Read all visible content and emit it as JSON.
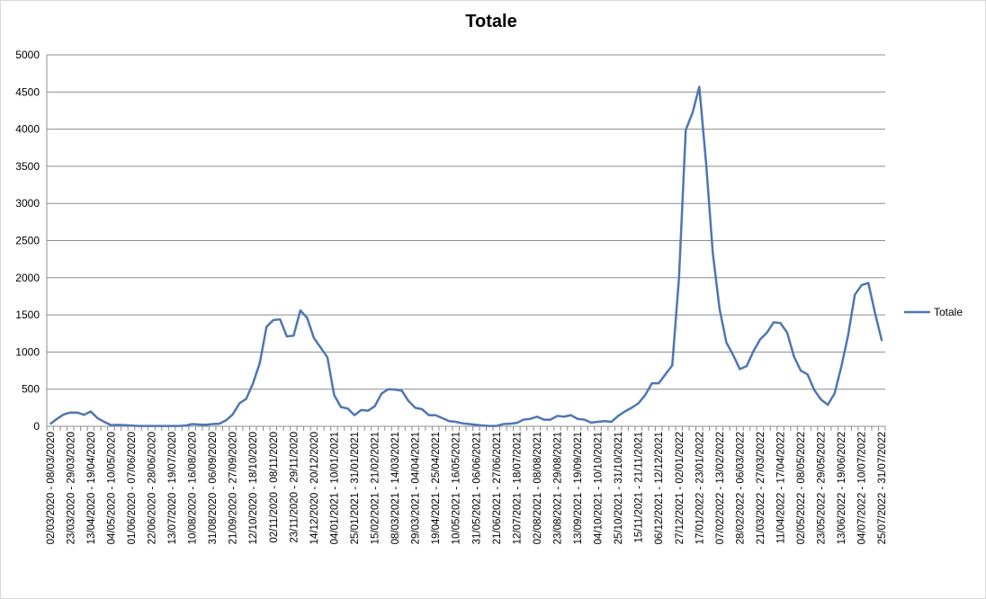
{
  "chart_data": {
    "type": "line",
    "title": "Totale",
    "categories": [
      "02/03/2020 - 08/03/2020",
      null,
      null,
      "23/03/2020 - 29/03/2020",
      null,
      null,
      "13/04/2020 - 19/04/2020",
      null,
      null,
      "04/05/2020 - 10/05/2020",
      null,
      null,
      "01/06/2020 - 07/06/2020",
      null,
      null,
      "22/06/2020 - 28/06/2020",
      null,
      null,
      "13/07/2020 - 19/07/2020",
      null,
      null,
      "10/08/2020 - 16/08/2020",
      null,
      null,
      "31/08/2020 - 06/09/2020",
      null,
      null,
      "21/09/2020 - 27/09/2020",
      null,
      null,
      "12/10/2020 - 18/10/2020",
      null,
      null,
      "02/11/2020 - 08/11/2020",
      null,
      null,
      "23/11/2020 - 29/11/2020",
      null,
      null,
      "14/12/2020 - 20/12/2020",
      null,
      null,
      "04/01/2021 - 10/01/2021",
      null,
      null,
      "25/01/2021 - 31/01/2021",
      null,
      null,
      "15/02/2021 - 21/02/2021",
      null,
      null,
      "08/03/2021 - 14/03/2021",
      null,
      null,
      "29/03/2021 - 04/04/2021",
      null,
      null,
      "19/04/2021 - 25/04/2021",
      null,
      null,
      "10/05/2021 - 16/05/2021",
      null,
      null,
      "31/05/2021 - 06/06/2021",
      null,
      null,
      "21/06/2021 - 27/06/2021",
      null,
      null,
      "12/07/2021 - 18/07/2021",
      null,
      null,
      "02/08/2021 - 08/08/2021",
      null,
      null,
      "23/08/2021 - 29/08/2021",
      null,
      null,
      "13/09/2021 - 19/09/2021",
      null,
      null,
      "04/10/2021 - 10/10/2021",
      null,
      null,
      "25/10/2021 - 31/10/2021",
      null,
      null,
      "15/11/2021 - 21/11/2021",
      null,
      null,
      "06/12/2021 - 12/12/2021",
      null,
      null,
      "27/12/2021 - 02/01/2022",
      null,
      null,
      "17/01/2022 - 23/01/2022",
      null,
      null,
      "07/02/2022 - 13/02/2022",
      null,
      null,
      "28/02/2022 - 06/03/2022",
      null,
      null,
      "21/03/2022 - 27/03/2022",
      null,
      null,
      "11/04/2022 - 17/04/2022",
      null,
      null,
      "02/05/2022 - 08/05/2022",
      null,
      null,
      "23/05/2022 - 29/05/2022",
      null,
      null,
      "13/06/2022 - 19/06/2022",
      null,
      null,
      "04/07/2022 - 10/07/2022",
      null,
      null,
      "25/07/2022 - 31/07/2022"
    ],
    "series": [
      {
        "name": "Totale",
        "color": "#4f76b4",
        "values": [
          30,
          100,
          160,
          185,
          185,
          155,
          200,
          110,
          60,
          15,
          20,
          15,
          10,
          5,
          5,
          5,
          5,
          5,
          5,
          5,
          10,
          30,
          25,
          20,
          30,
          35,
          80,
          160,
          310,
          370,
          580,
          850,
          1340,
          1430,
          1440,
          1210,
          1220,
          1560,
          1460,
          1190,
          1060,
          930,
          420,
          260,
          240,
          150,
          220,
          210,
          270,
          440,
          500,
          495,
          480,
          340,
          250,
          230,
          150,
          150,
          110,
          70,
          60,
          40,
          30,
          20,
          10,
          5,
          5,
          30,
          35,
          45,
          90,
          100,
          130,
          90,
          90,
          140,
          130,
          150,
          100,
          90,
          50,
          60,
          70,
          60,
          140,
          200,
          250,
          310,
          420,
          580,
          580,
          700,
          820,
          2000,
          3990,
          4220,
          4570,
          3550,
          2330,
          1580,
          1130,
          960,
          770,
          810,
          1010,
          1170,
          1260,
          1400,
          1390,
          1260,
          940,
          750,
          700,
          490,
          360,
          290,
          440,
          800,
          1220,
          1770,
          1900,
          1930,
          1520,
          1150
        ]
      }
    ],
    "ylim": [
      0,
      5000
    ],
    "yticks": [
      0,
      500,
      1000,
      1500,
      2000,
      2500,
      3000,
      3500,
      4000,
      4500,
      5000
    ],
    "grid": true,
    "legend": "right"
  }
}
